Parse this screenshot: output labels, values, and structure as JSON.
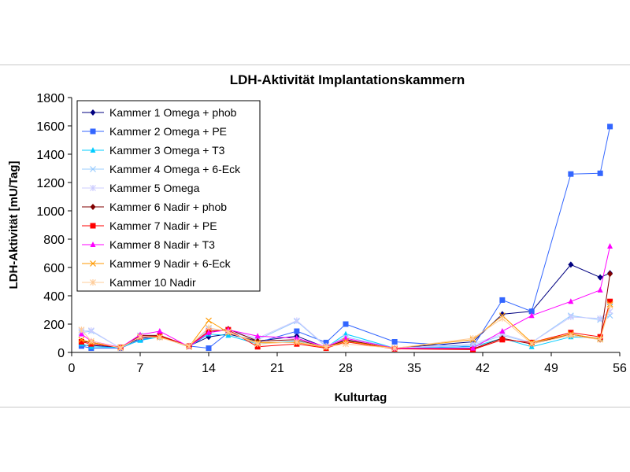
{
  "chart_data": {
    "type": "line",
    "title": "LDH-Aktivität Implantationskammern",
    "xlabel": "Kulturtag",
    "ylabel": "LDH-Aktivität [mU/Tag]",
    "xlim": [
      0,
      56
    ],
    "ylim": [
      0,
      1800
    ],
    "xticks": [
      0,
      7,
      14,
      21,
      28,
      35,
      42,
      49,
      56
    ],
    "yticks": [
      0,
      200,
      400,
      600,
      800,
      1000,
      1200,
      1400,
      1600,
      1800
    ],
    "grid": false,
    "legend": "top-left",
    "series": [
      {
        "name": "Kammer 1 Omega + phob",
        "color": "#000080",
        "marker": "diamond",
        "x": [
          1,
          2,
          5,
          7,
          9,
          12,
          14,
          16,
          19,
          23,
          26,
          28,
          33,
          41,
          44,
          47,
          51,
          54,
          55
        ],
        "y": [
          50,
          50,
          35,
          100,
          110,
          45,
          110,
          130,
          80,
          115,
          35,
          85,
          30,
          75,
          270,
          290,
          620,
          530,
          560
        ]
      },
      {
        "name": "Kammer 2 Omega + PE",
        "color": "#3366FF",
        "marker": "square",
        "x": [
          1,
          2,
          5,
          7,
          9,
          12,
          14,
          16,
          19,
          23,
          26,
          28,
          33,
          41,
          44,
          47,
          51,
          54,
          55
        ],
        "y": [
          45,
          30,
          30,
          90,
          110,
          45,
          30,
          140,
          70,
          150,
          70,
          200,
          75,
          40,
          370,
          290,
          1260,
          1265,
          1595
        ]
      },
      {
        "name": "Kammer 3 Omega + T3",
        "color": "#00CCFF",
        "marker": "triangle",
        "x": [
          1,
          2,
          5,
          7,
          9,
          12,
          14,
          16,
          19,
          23,
          26,
          28,
          33,
          41,
          44,
          47,
          51,
          54,
          55
        ],
        "y": [
          60,
          40,
          35,
          85,
          110,
          40,
          130,
          120,
          60,
          80,
          35,
          130,
          30,
          40,
          100,
          40,
          110,
          100,
          350
        ]
      },
      {
        "name": "Kammer 4 Omega + 6-Eck",
        "color": "#99CCFF",
        "marker": "x",
        "x": [
          1,
          2,
          5,
          7,
          9,
          12,
          14,
          16,
          19,
          23,
          26,
          28,
          33,
          41,
          44,
          47,
          51,
          54,
          55
        ],
        "y": [
          140,
          150,
          30,
          120,
          120,
          40,
          170,
          150,
          90,
          220,
          40,
          110,
          30,
          50,
          120,
          70,
          260,
          230,
          260
        ]
      },
      {
        "name": "Kammer 5 Omega",
        "color": "#CCCCFF",
        "marker": "star",
        "x": [
          1,
          2,
          5,
          7,
          9,
          12,
          14,
          16,
          19,
          23,
          26,
          28,
          33,
          41,
          44,
          47,
          51,
          54,
          55
        ],
        "y": [
          150,
          155,
          30,
          115,
          115,
          45,
          160,
          160,
          100,
          225,
          45,
          100,
          30,
          60,
          130,
          70,
          250,
          240,
          290
        ]
      },
      {
        "name": "Kammer 6 Nadir + phob",
        "color": "#800000",
        "marker": "diamond",
        "x": [
          1,
          2,
          5,
          7,
          9,
          12,
          14,
          16,
          19,
          23,
          26,
          28,
          33,
          41,
          44,
          47,
          51,
          54,
          55
        ],
        "y": [
          80,
          70,
          35,
          120,
          120,
          45,
          140,
          165,
          80,
          90,
          35,
          90,
          25,
          25,
          100,
          60,
          130,
          90,
          555
        ]
      },
      {
        "name": "Kammer 7 Nadir + PE",
        "color": "#FF0000",
        "marker": "square",
        "x": [
          1,
          2,
          5,
          7,
          9,
          12,
          14,
          16,
          19,
          23,
          26,
          28,
          33,
          41,
          44,
          47,
          51,
          54,
          55
        ],
        "y": [
          75,
          60,
          35,
          110,
          115,
          45,
          150,
          160,
          40,
          60,
          30,
          75,
          25,
          20,
          90,
          70,
          140,
          110,
          360
        ]
      },
      {
        "name": "Kammer 8 Nadir + T3",
        "color": "#FF00FF",
        "marker": "triangle",
        "x": [
          1,
          2,
          5,
          7,
          9,
          12,
          14,
          16,
          19,
          23,
          26,
          28,
          33,
          41,
          44,
          47,
          51,
          54,
          55
        ],
        "y": [
          130,
          80,
          35,
          125,
          150,
          40,
          140,
          160,
          115,
          100,
          40,
          100,
          30,
          30,
          150,
          260,
          360,
          440,
          750
        ]
      },
      {
        "name": "Kammer 9 Nadir + 6-Eck",
        "color": "#FF9900",
        "marker": "x",
        "x": [
          1,
          2,
          5,
          7,
          9,
          12,
          14,
          16,
          19,
          23,
          26,
          28,
          33,
          41,
          44,
          47,
          51,
          54,
          55
        ],
        "y": [
          90,
          70,
          35,
          110,
          110,
          40,
          225,
          140,
          70,
          70,
          35,
          80,
          30,
          90,
          260,
          70,
          130,
          95,
          340
        ]
      },
      {
        "name": "Kammer 10 Nadir",
        "color": "#FFCC99",
        "marker": "star",
        "x": [
          1,
          2,
          5,
          7,
          9,
          12,
          14,
          16,
          19,
          23,
          26,
          28,
          33,
          41,
          44,
          47,
          51,
          54,
          55
        ],
        "y": [
          160,
          80,
          30,
          110,
          105,
          45,
          175,
          145,
          60,
          75,
          40,
          60,
          30,
          100,
          240,
          60,
          120,
          90,
          330
        ]
      }
    ]
  }
}
